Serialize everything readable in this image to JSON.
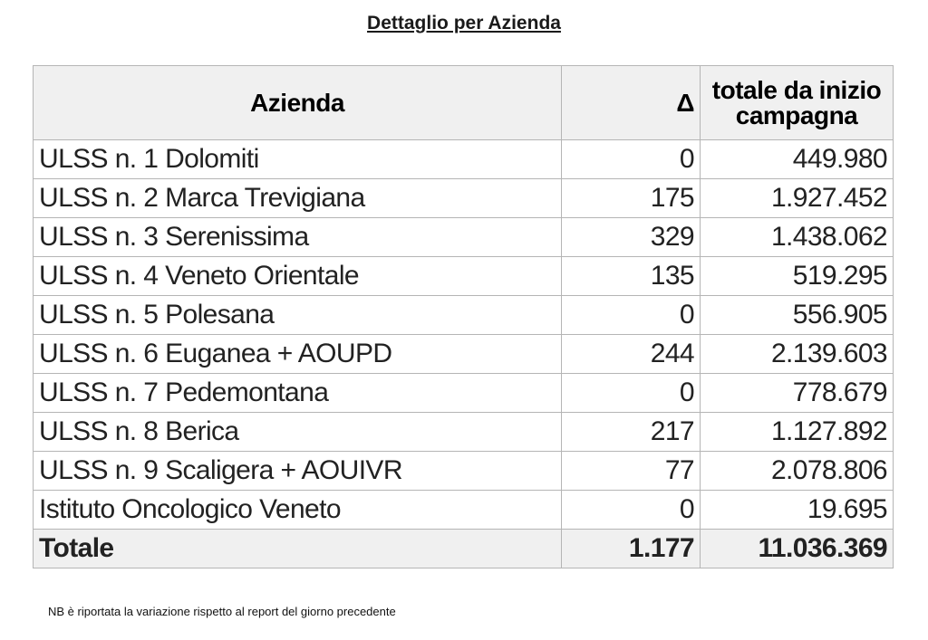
{
  "title": "Dettaglio per Azienda",
  "table": {
    "headers": {
      "azienda": "Azienda",
      "delta": "Δ",
      "totale": "totale da inizio campagna"
    },
    "rows": [
      {
        "azienda": "ULSS n. 1 Dolomiti",
        "delta": "0",
        "totale": "449.980"
      },
      {
        "azienda": "ULSS n. 2 Marca Trevigiana",
        "delta": "175",
        "totale": "1.927.452"
      },
      {
        "azienda": "ULSS n. 3 Serenissima",
        "delta": "329",
        "totale": "1.438.062"
      },
      {
        "azienda": "ULSS n. 4 Veneto Orientale",
        "delta": "135",
        "totale": "519.295"
      },
      {
        "azienda": "ULSS n. 5 Polesana",
        "delta": "0",
        "totale": "556.905"
      },
      {
        "azienda": "ULSS n. 6 Euganea + AOUPD",
        "delta": "244",
        "totale": "2.139.603"
      },
      {
        "azienda": "ULSS n. 7 Pedemontana",
        "delta": "0",
        "totale": "778.679"
      },
      {
        "azienda": "ULSS n. 8 Berica",
        "delta": "217",
        "totale": "1.127.892"
      },
      {
        "azienda": "ULSS n. 9 Scaligera + AOUIVR",
        "delta": "77",
        "totale": "2.078.806"
      },
      {
        "azienda": "Istituto Oncologico Veneto",
        "delta": "0",
        "totale": "19.695"
      }
    ],
    "total": {
      "azienda": "Totale",
      "delta": "1.177",
      "totale": "11.036.369"
    }
  },
  "footnote": "NB è riportata la variazione rispetto al report del giorno precedente"
}
